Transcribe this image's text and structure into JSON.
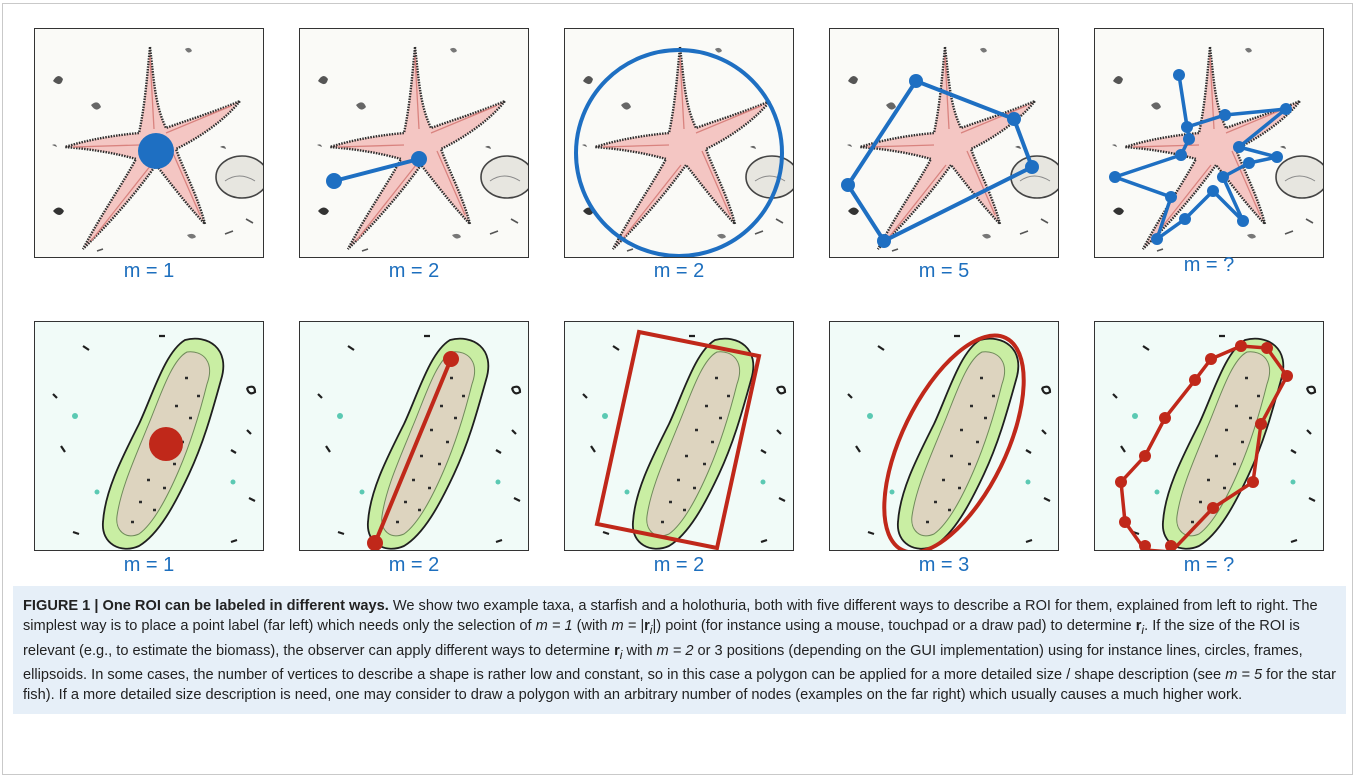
{
  "figure": {
    "rows": [
      {
        "taxon": "starfish",
        "panels": [
          {
            "label": "m = 1",
            "annotation": "point"
          },
          {
            "label": "m = 2",
            "annotation": "line"
          },
          {
            "label": "m = 2",
            "annotation": "circle"
          },
          {
            "label": "m = 5",
            "annotation": "polygon"
          },
          {
            "label": "m = ?",
            "annotation": "detailed-polygon"
          }
        ]
      },
      {
        "taxon": "holothuria",
        "panels": [
          {
            "label": "m = 1",
            "annotation": "point"
          },
          {
            "label": "m = 2",
            "annotation": "line"
          },
          {
            "label": "m = 2",
            "annotation": "frame"
          },
          {
            "label": "m = 3",
            "annotation": "ellipse"
          },
          {
            "label": "m = ?",
            "annotation": "detailed-polygon"
          }
        ]
      }
    ],
    "colors": {
      "starfish_annotation": "#1e6fc2",
      "holothuria_annotation": "#c0281a",
      "label_text": "#1d6fbe",
      "caption_bg": "#e6eff8"
    }
  },
  "caption": {
    "title": "FIGURE 1 | One ROI can be labeled in different ways.",
    "t1": " We show two example taxa, a starfish and a holothuria, both with five different ways to describe a ROI for them, explained from left to right. The simplest way is to place a point label (far left) which needs only the selection of ",
    "m_eq_1": "m = 1",
    "t2": " (with ",
    "m_eq_ri_a": "m = |",
    "ri_bold_a": "r",
    "ri_sub_a": "i",
    "ri_close": "|",
    "t3": ") point (for instance using a mouse, touchpad or a draw pad) to determine ",
    "ri_bold_b": "r",
    "ri_sub_b": "i",
    "t4": ". If the size of the ROI is relevant (e.g., to estimate the biomass), the observer can apply different ways to determine ",
    "ri_bold_c": "r",
    "ri_sub_c": "i",
    "t5": " with ",
    "m_eq_2": "m = 2",
    "t6": " or 3 positions (depending on the GUI implementation) using for instance lines, circles, frames, ellipsoids. In some cases, the number of vertices to describe a shape is rather low and constant, so in this case a polygon can be applied for a more detailed size / shape description (see ",
    "m_eq_5": "m = 5",
    "t7": " for the star fish). If a more detailed size description is need, one may consider to draw a polygon with an arbitrary number of nodes (examples on the far right) which usually causes a much higher work."
  }
}
